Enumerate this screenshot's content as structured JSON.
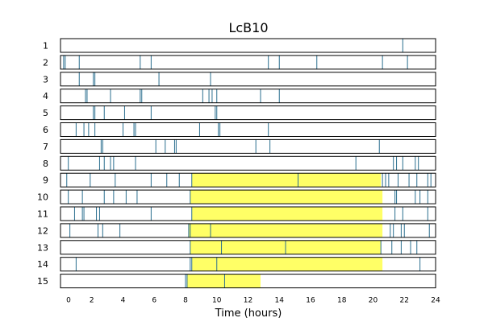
{
  "chart_data": {
    "type": "actogram",
    "title": "LcB10",
    "xlabel": "Time (hours)",
    "xlim": [
      0,
      24
    ],
    "xticks": [
      0,
      2,
      4,
      6,
      8,
      10,
      12,
      14,
      16,
      18,
      20,
      22,
      24
    ],
    "highlight_color": "#ffff66",
    "event_color": "#2b6f8f",
    "rows": [
      {
        "label": "1",
        "highlight": null,
        "events": [
          21.9
        ]
      },
      {
        "label": "2",
        "highlight": null,
        "events": [
          0.2,
          0.3,
          1.2,
          5.1,
          5.8,
          13.3,
          14.0,
          16.4,
          20.6,
          22.2
        ]
      },
      {
        "label": "3",
        "highlight": null,
        "events": [
          1.2,
          2.1,
          2.2,
          6.3,
          9.6
        ]
      },
      {
        "label": "4",
        "highlight": null,
        "events": [
          1.6,
          1.7,
          3.2,
          5.1,
          5.2,
          9.1,
          9.5,
          9.7,
          10.0,
          12.8,
          14.0
        ]
      },
      {
        "label": "5",
        "highlight": null,
        "events": [
          2.1,
          2.2,
          2.8,
          4.1,
          5.8,
          9.9,
          10.0
        ]
      },
      {
        "label": "6",
        "highlight": null,
        "events": [
          1.0,
          1.5,
          1.8,
          2.2,
          4.0,
          4.7,
          4.8,
          8.9,
          10.1,
          10.2,
          13.3
        ]
      },
      {
        "label": "7",
        "highlight": null,
        "events": [
          2.6,
          2.7,
          6.1,
          6.7,
          7.3,
          7.4,
          12.5,
          13.4,
          20.4
        ]
      },
      {
        "label": "8",
        "highlight": null,
        "events": [
          0.5,
          2.5,
          2.8,
          3.2,
          3.4,
          4.8,
          18.9,
          21.3,
          21.5,
          21.9,
          22.7,
          22.9
        ]
      },
      {
        "label": "9",
        "highlight": [
          8.4,
          20.5
        ],
        "events": [
          0.4,
          1.9,
          3.5,
          5.8,
          6.8,
          7.6,
          8.4,
          15.2,
          20.6,
          20.8,
          21.0,
          21.6,
          22.3,
          22.8,
          23.5,
          23.7
        ]
      },
      {
        "label": "10",
        "highlight": [
          8.3,
          20.6
        ],
        "events": [
          0.5,
          1.4,
          2.8,
          3.4,
          4.2,
          4.9,
          8.3,
          21.4,
          21.5,
          22.7,
          23.0,
          23.5
        ]
      },
      {
        "label": "11",
        "highlight": [
          8.4,
          20.6
        ],
        "events": [
          0.9,
          1.4,
          1.5,
          2.3,
          2.5,
          5.8,
          8.4,
          21.4,
          21.9,
          23.5
        ]
      },
      {
        "label": "12",
        "highlight": [
          8.2,
          20.6
        ],
        "events": [
          0.6,
          2.4,
          2.7,
          3.8,
          8.2,
          8.3,
          9.6,
          21.1,
          21.3,
          21.8,
          22.0,
          23.6
        ]
      },
      {
        "label": "13",
        "highlight": [
          8.3,
          20.5
        ],
        "events": [
          8.3,
          10.3,
          14.4,
          20.5,
          21.2,
          21.8,
          22.4,
          22.8
        ]
      },
      {
        "label": "14",
        "highlight": [
          8.4,
          20.6
        ],
        "events": [
          1.0,
          8.3,
          8.4,
          10.0,
          23.0
        ]
      },
      {
        "label": "15",
        "highlight": [
          8.1,
          12.8
        ],
        "events": [
          8.0,
          8.1,
          10.5
        ]
      }
    ]
  }
}
